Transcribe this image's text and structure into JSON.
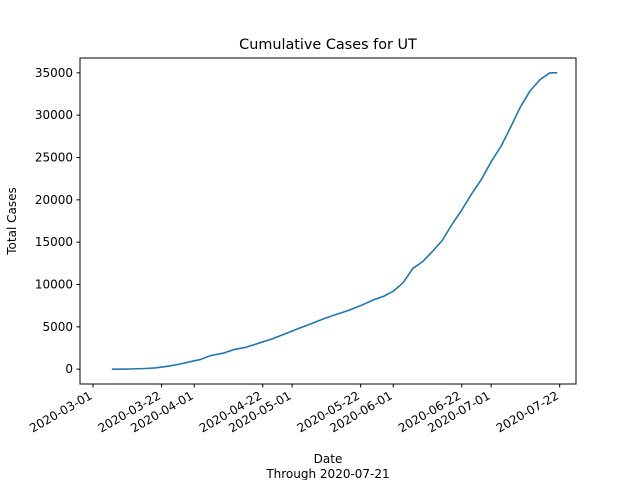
{
  "chart_data": {
    "type": "line",
    "title": "Cumulative Cases for UT",
    "xlabel": "Date",
    "xlabel_sub": "Through 2020-07-21",
    "ylabel": "Total Cases",
    "x_axis_type": "date",
    "xlim": [
      "2020-02-26",
      "2020-07-27"
    ],
    "ylim": [
      -1750,
      36750
    ],
    "grid": false,
    "legend": "none",
    "line_color": "#1f77b4",
    "xticks": [
      "2020-03-01",
      "2020-03-22",
      "2020-04-01",
      "2020-04-22",
      "2020-05-01",
      "2020-05-22",
      "2020-06-01",
      "2020-06-22",
      "2020-07-01",
      "2020-07-22"
    ],
    "yticks": [
      0,
      5000,
      10000,
      15000,
      20000,
      25000,
      30000,
      35000
    ],
    "series": [
      {
        "x": [
          "2020-03-07",
          "2020-03-12",
          "2020-03-17",
          "2020-03-20",
          "2020-03-24",
          "2020-03-27",
          "2020-03-31",
          "2020-04-03",
          "2020-04-06",
          "2020-04-10",
          "2020-04-13",
          "2020-04-17",
          "2020-04-21",
          "2020-04-25",
          "2020-04-29",
          "2020-05-03",
          "2020-05-07",
          "2020-05-11",
          "2020-05-14",
          "2020-05-18",
          "2020-05-22",
          "2020-05-26",
          "2020-05-29",
          "2020-06-01",
          "2020-06-04",
          "2020-06-07",
          "2020-06-10",
          "2020-06-13",
          "2020-06-16",
          "2020-06-19",
          "2020-06-22",
          "2020-06-25",
          "2020-06-28",
          "2020-07-01",
          "2020-07-04",
          "2020-07-07",
          "2020-07-10",
          "2020-07-13",
          "2020-07-16",
          "2020-07-19",
          "2020-07-21"
        ],
        "values": [
          0,
          20,
          80,
          150,
          350,
          550,
          900,
          1150,
          1600,
          1900,
          2300,
          2600,
          3100,
          3600,
          4200,
          4800,
          5400,
          6000,
          6400,
          6900,
          7500,
          8200,
          8600,
          9200,
          10200,
          11900,
          12700,
          13900,
          15200,
          17100,
          18800,
          20700,
          22400,
          24500,
          26300,
          28600,
          31000,
          32900,
          34200,
          35000,
          35000
        ]
      }
    ]
  }
}
